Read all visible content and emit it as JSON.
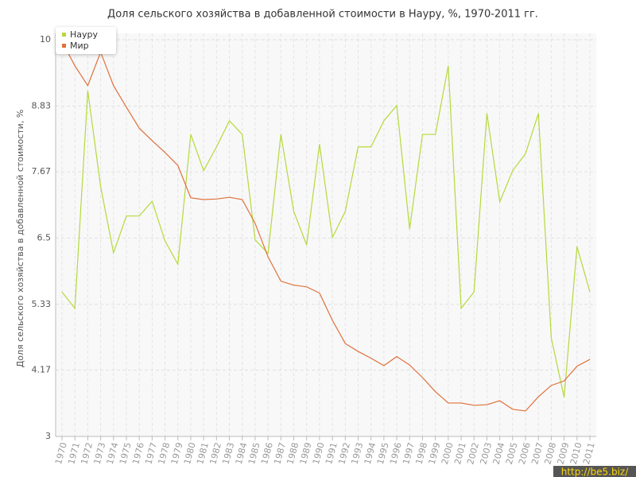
{
  "chart_data": {
    "type": "line",
    "title": "Доля сельского хозяйства в добавленной стоимости в Науру, %, 1970-2011 гг.",
    "y_label": "Доля сельского хозяйства в добавленной стоимости, %",
    "watermark": "http://be5.biz/",
    "categories": [
      "1970",
      "1971",
      "1972",
      "1973",
      "1974",
      "1975",
      "1976",
      "1977",
      "1978",
      "1979",
      "1980",
      "1981",
      "1982",
      "1983",
      "1984",
      "1985",
      "1986",
      "1987",
      "1988",
      "1989",
      "1990",
      "1991",
      "1992",
      "1993",
      "1994",
      "1995",
      "1996",
      "1997",
      "1998",
      "1999",
      "2000",
      "2001",
      "2002",
      "2003",
      "2004",
      "2005",
      "2006",
      "2007",
      "2008",
      "2009",
      "2010",
      "2011"
    ],
    "series": [
      {
        "name": "Науру",
        "color": "#b5d93b",
        "values": [
          5.55,
          5.26,
          9.1,
          7.41,
          6.24,
          6.89,
          6.89,
          7.15,
          6.45,
          6.04,
          8.33,
          7.69,
          8.11,
          8.57,
          8.33,
          6.47,
          6.23,
          8.33,
          6.97,
          6.38,
          8.16,
          6.51,
          6.97,
          8.11,
          8.11,
          8.57,
          8.84,
          6.66,
          8.33,
          8.33,
          9.54,
          5.26,
          5.55,
          8.7,
          7.14,
          7.69,
          7.99,
          8.7,
          4.74,
          3.69,
          6.35,
          5.55
        ]
      },
      {
        "name": "Мир",
        "color": "#e0703a",
        "values": [
          9.97,
          9.54,
          9.19,
          9.78,
          9.19,
          8.81,
          8.44,
          8.22,
          8.01,
          7.78,
          7.21,
          7.18,
          7.19,
          7.22,
          7.18,
          6.76,
          6.17,
          5.74,
          5.67,
          5.64,
          5.53,
          5.05,
          4.64,
          4.5,
          4.38,
          4.25,
          4.41,
          4.26,
          4.04,
          3.79,
          3.59,
          3.59,
          3.55,
          3.56,
          3.63,
          3.48,
          3.45,
          3.7,
          3.9,
          3.98,
          4.24,
          4.36
        ]
      }
    ],
    "ylim": [
      3,
      10
    ],
    "yticks": [
      3,
      4.17,
      5.33,
      6.5,
      7.67,
      8.83,
      10
    ],
    "grid": true,
    "legend": "top-left"
  }
}
